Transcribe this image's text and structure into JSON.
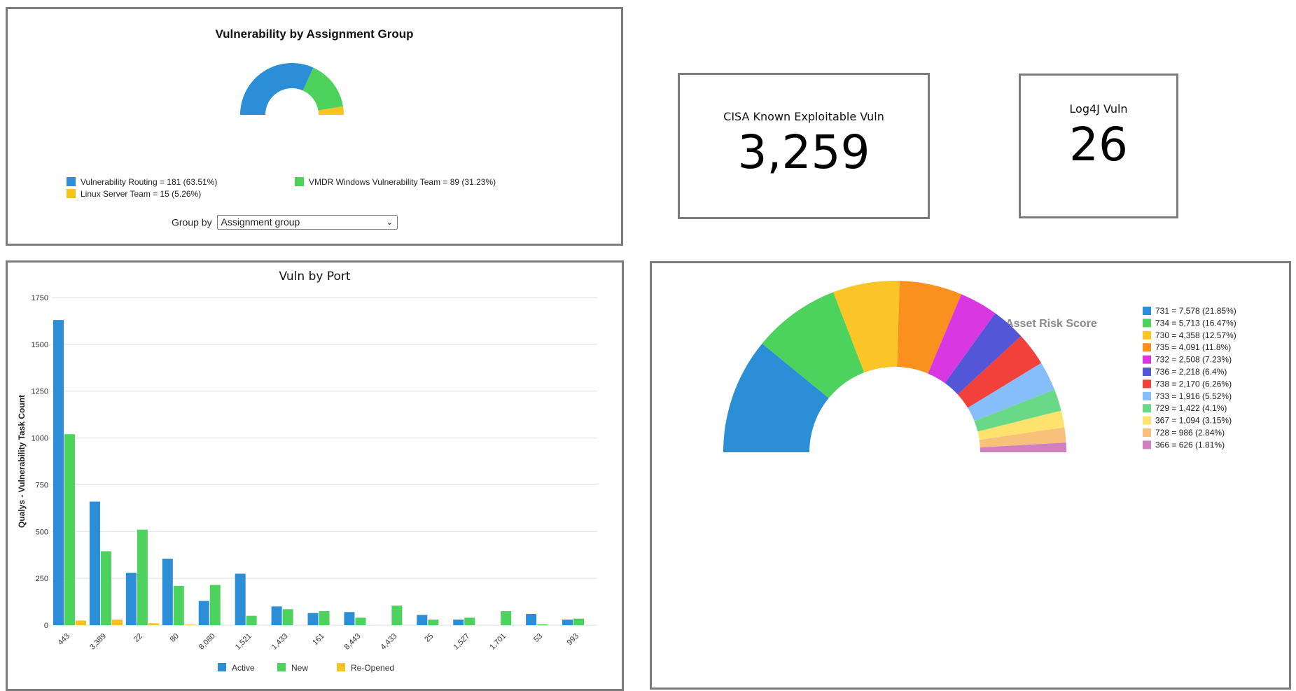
{
  "assignment_panel": {
    "title": "Vulnerability by Assignment Group",
    "groupby_label": "Group by",
    "groupby_value": "Assignment group",
    "legend": [
      {
        "label": "Vulnerability Routing = 181 (63.51%)",
        "color": "#2b8ed6"
      },
      {
        "label": "VMDR Windows Vulnerability Team = 89 (31.23%)",
        "color": "#4cd25d"
      },
      {
        "label": "Linux Server Team = 15 (5.26%)",
        "color": "#f7c31e"
      }
    ]
  },
  "cisa_panel": {
    "label": "CISA Known Exploitable Vuln",
    "value": "3,259"
  },
  "log4j_panel": {
    "label": "Log4J Vuln",
    "value": "26"
  },
  "port_panel": {
    "title": "Vuln by Port"
  },
  "risk_panel": {
    "title": "Vulnerability Classification by Asset Risk Score"
  },
  "chart_data": [
    {
      "type": "pie",
      "style": "semi-donut",
      "title": "Vulnerability by Assignment Group",
      "labels": [
        "Vulnerability Routing",
        "VMDR Windows Vulnerability Team",
        "Linux Server Team"
      ],
      "values": [
        181,
        89,
        15
      ],
      "colors": [
        "#2b8ed6",
        "#4cd25d",
        "#f7c31e"
      ]
    },
    {
      "type": "bar",
      "title": "Vuln by Port",
      "ylabel": "Qualys - Vulnerability Task Count",
      "categories": [
        "443",
        "3,389",
        "22",
        "80",
        "8,080",
        "1,521",
        "1,433",
        "161",
        "8,443",
        "4,433",
        "25",
        "1,527",
        "1,701",
        "53",
        "993"
      ],
      "yticks": [
        "0",
        "250",
        "500",
        "750",
        "1000",
        "1250",
        "1500",
        "1750"
      ],
      "ylim": [
        0,
        1750
      ],
      "grid": true,
      "legend_position": "bottom",
      "series": [
        {
          "name": "Active",
          "color": "#2b8ed6",
          "values": [
            1630,
            660,
            280,
            355,
            130,
            275,
            100,
            65,
            70,
            0,
            55,
            30,
            0,
            60,
            30
          ]
        },
        {
          "name": "New",
          "color": "#4cd25d",
          "values": [
            1020,
            395,
            510,
            210,
            215,
            50,
            85,
            75,
            40,
            105,
            30,
            40,
            75,
            5,
            35
          ]
        },
        {
          "name": "Re-Opened",
          "color": "#f7c31e",
          "values": [
            25,
            30,
            10,
            3,
            0,
            0,
            0,
            0,
            0,
            0,
            0,
            0,
            0,
            0,
            0
          ]
        }
      ]
    },
    {
      "type": "pie",
      "style": "semi-donut",
      "title": "Vulnerability Classification by Asset Risk Score",
      "legend_position": "right",
      "labels": [
        "731",
        "734",
        "730",
        "735",
        "732",
        "736",
        "738",
        "733",
        "729",
        "367",
        "728",
        "366"
      ],
      "values": [
        7578,
        5713,
        4358,
        4091,
        2508,
        2218,
        2170,
        1916,
        1422,
        1094,
        986,
        626
      ],
      "legend_labels": [
        "731 = 7,578 (21.85%)",
        "734 = 5,713 (16.47%)",
        "730 = 4,358 (12.57%)",
        "735 = 4,091 (11.8%)",
        "732 = 2,508 (7.23%)",
        "736 = 2,218 (6.4%)",
        "738 = 2,170 (6.26%)",
        "733 = 1,916 (5.52%)",
        "729 = 1,422 (4.1%)",
        "367 = 1,094 (3.15%)",
        "728 = 986 (2.84%)",
        "366 = 626 (1.81%)"
      ],
      "colors": [
        "#2b8ed6",
        "#4cd25d",
        "#fbc527",
        "#fa901e",
        "#d937e2",
        "#5356d6",
        "#f2403a",
        "#86bdfb",
        "#6ad987",
        "#fde26d",
        "#f8c07a",
        "#d07fbf"
      ]
    }
  ]
}
